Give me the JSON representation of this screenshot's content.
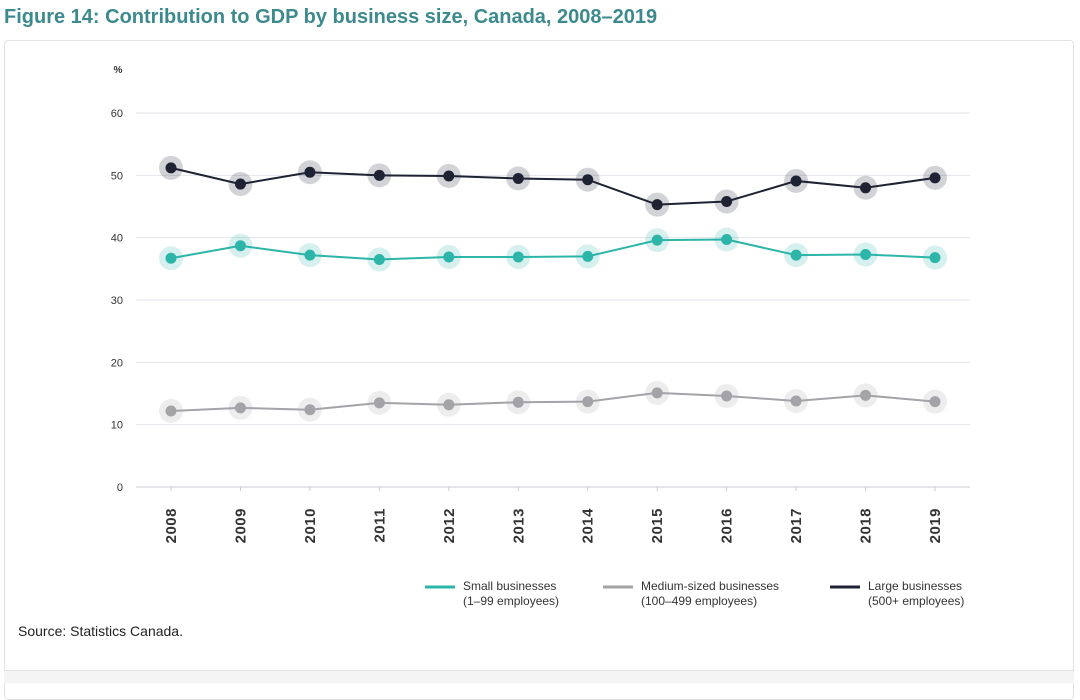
{
  "figure_title": "Figure 14: Contribution to GDP by business size, Canada, 2008–2019",
  "source": "Source: Statistics Canada.",
  "chart_data": {
    "type": "line",
    "unit_label": "%",
    "x": [
      "2008",
      "2009",
      "2010",
      "2011",
      "2012",
      "2013",
      "2014",
      "2015",
      "2016",
      "2017",
      "2018",
      "2019"
    ],
    "yticks": [
      "0",
      "10",
      "20",
      "30",
      "40",
      "50",
      "60"
    ],
    "ylim": [
      0,
      60
    ],
    "grid": true,
    "legend_position": "bottom",
    "series": [
      {
        "name": "Small businesses",
        "name_line2": "(1–99 employees)",
        "color": "#2cb5a8",
        "values": [
          36.7,
          38.7,
          37.2,
          36.5,
          36.9,
          36.9,
          37.0,
          39.6,
          39.7,
          37.2,
          37.3,
          36.8
        ]
      },
      {
        "name": "Medium-sized businesses",
        "name_line2": "(100–499 employees)",
        "color": "#a3a3a8",
        "values": [
          12.2,
          12.7,
          12.4,
          13.5,
          13.2,
          13.6,
          13.7,
          15.1,
          14.6,
          13.8,
          14.7,
          13.7
        ]
      },
      {
        "name": "Large businesses",
        "name_line2": "(500+ employees)",
        "color": "#1e2233",
        "values": [
          51.2,
          48.6,
          50.5,
          50.0,
          49.9,
          49.5,
          49.3,
          45.3,
          45.8,
          49.1,
          48.0,
          49.6
        ]
      }
    ]
  }
}
